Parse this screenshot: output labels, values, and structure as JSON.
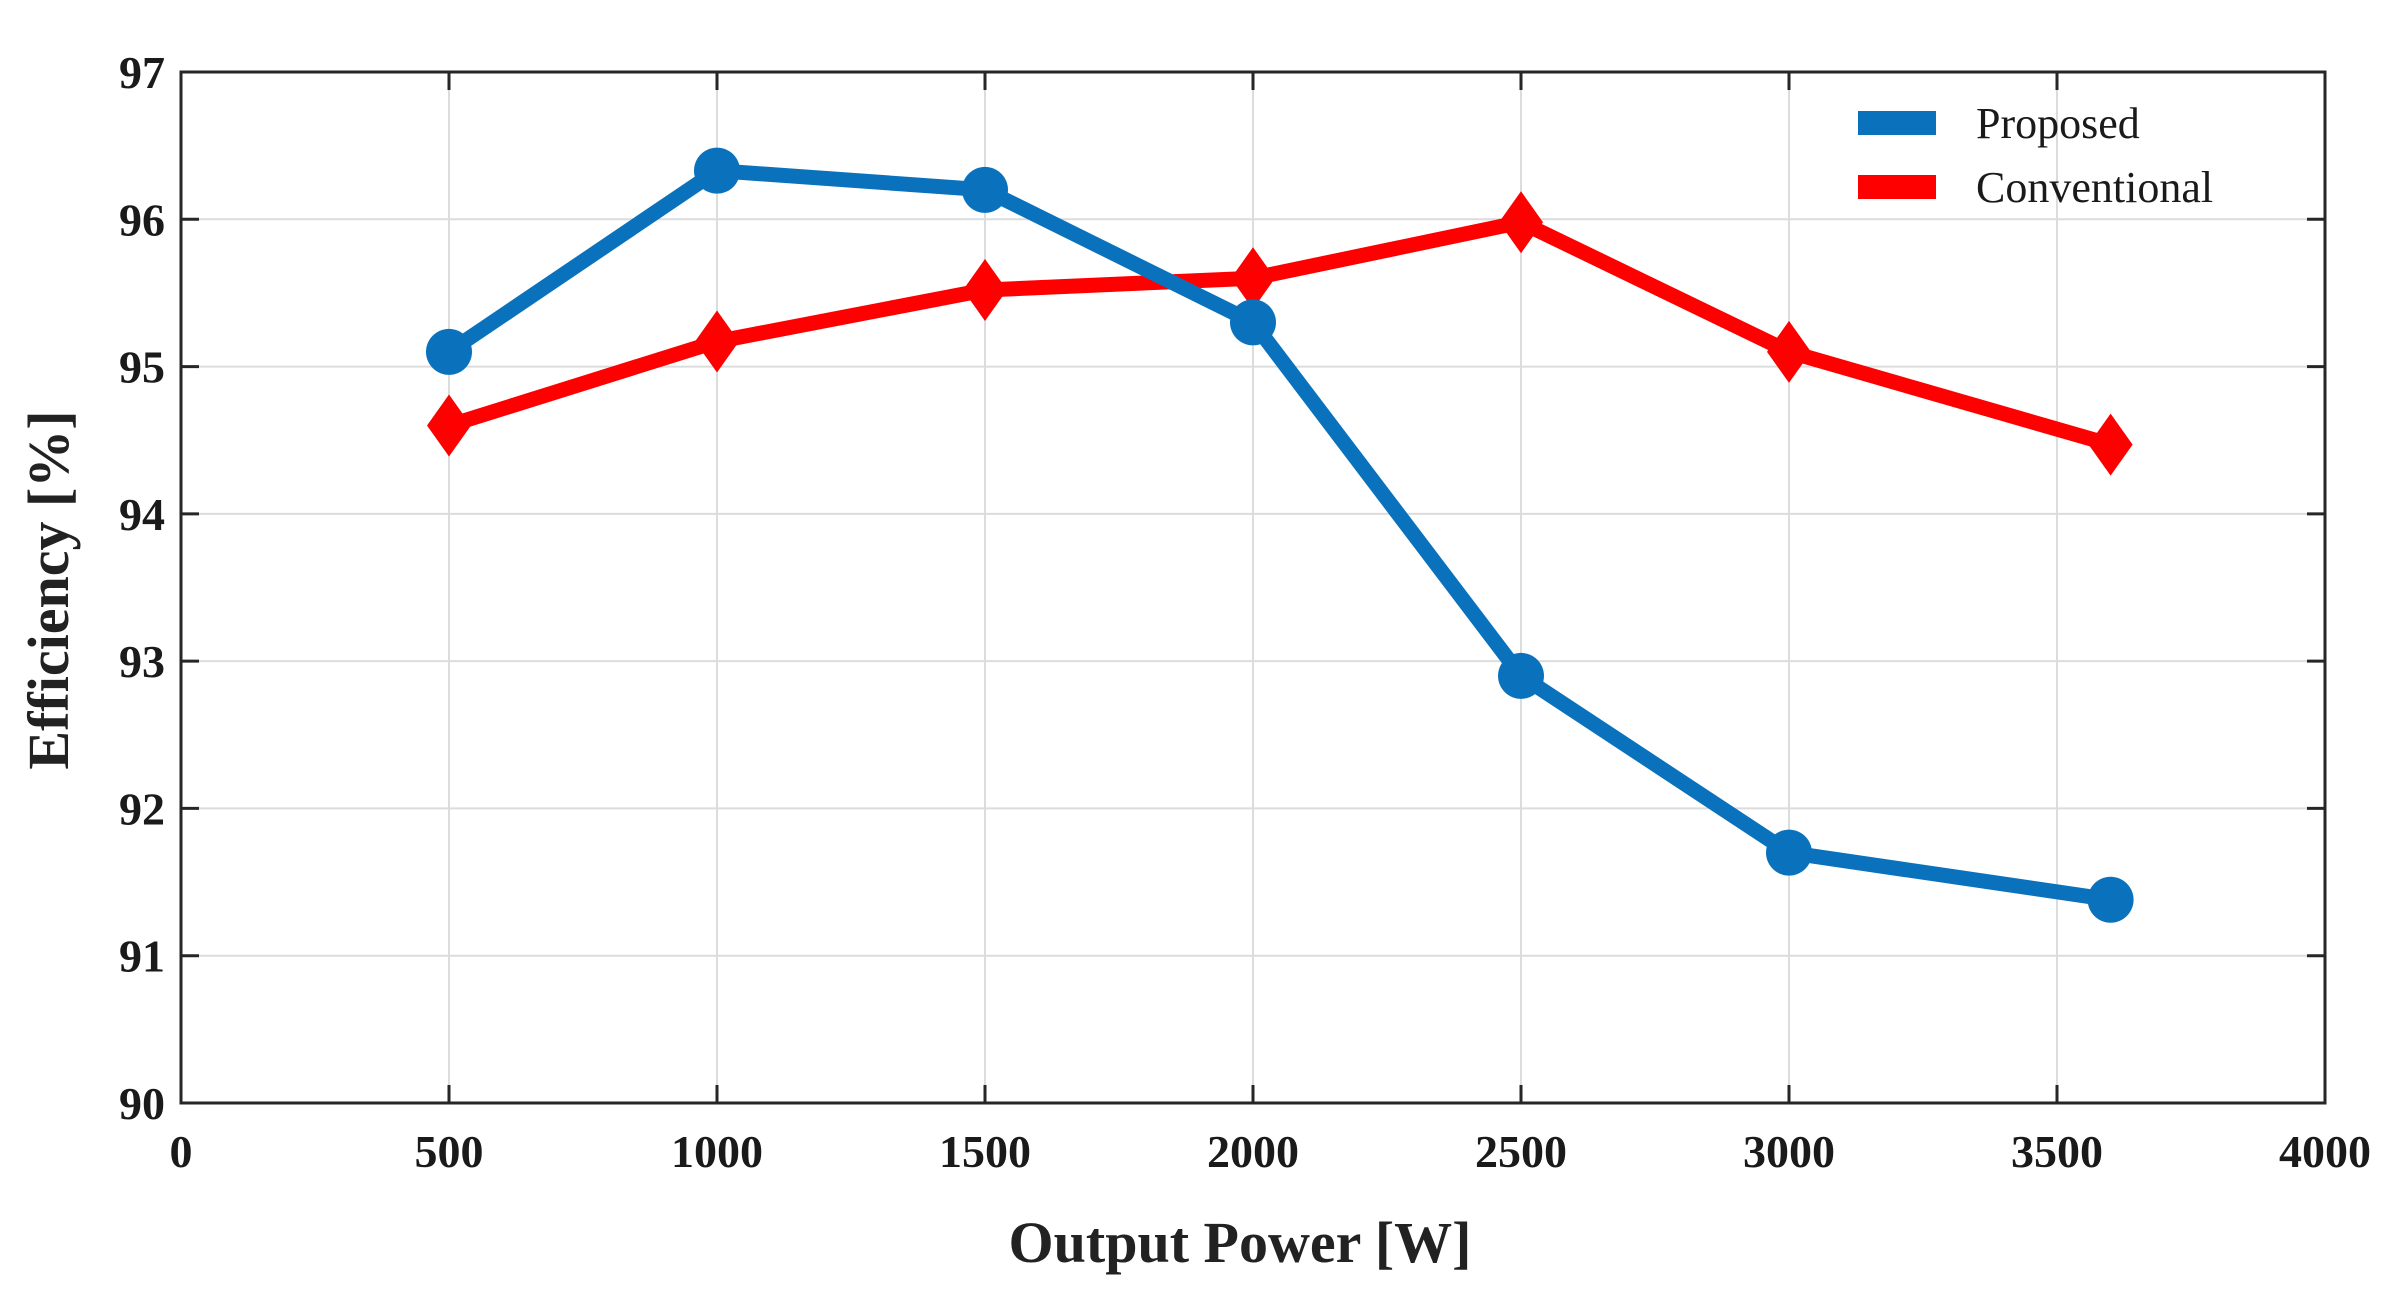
{
  "chart_data": {
    "type": "line",
    "title": "",
    "xlabel": "Output Power [W]",
    "ylabel": "Efficiency [%]",
    "xlim": [
      0,
      4000
    ],
    "ylim": [
      90,
      97
    ],
    "xticks": [
      0,
      500,
      1000,
      1500,
      2000,
      2500,
      3000,
      3500,
      4000
    ],
    "xtick_labels": [
      "0",
      "500",
      "1000",
      "1500",
      "2000",
      "2500",
      "3000",
      "3500",
      "4000"
    ],
    "yticks": [
      90,
      91,
      92,
      93,
      94,
      95,
      96,
      97
    ],
    "ytick_labels": [
      "90",
      "91",
      "92",
      "93",
      "94",
      "95",
      "96",
      "97"
    ],
    "grid": true,
    "legend_position": "top-right",
    "series": [
      {
        "name": "Proposed",
        "color": "#0a72bd",
        "marker": "circle",
        "x": [
          500,
          1000,
          1500,
          2000,
          2500,
          3000,
          3600
        ],
        "y": [
          95.1,
          96.33,
          96.2,
          95.3,
          92.9,
          91.7,
          91.38
        ]
      },
      {
        "name": "Conventional",
        "color": "#ff0000",
        "marker": "diamond",
        "x": [
          500,
          1000,
          1500,
          2000,
          2500,
          3000,
          3600
        ],
        "y": [
          94.6,
          95.17,
          95.52,
          95.6,
          95.98,
          95.1,
          94.47
        ]
      }
    ]
  }
}
